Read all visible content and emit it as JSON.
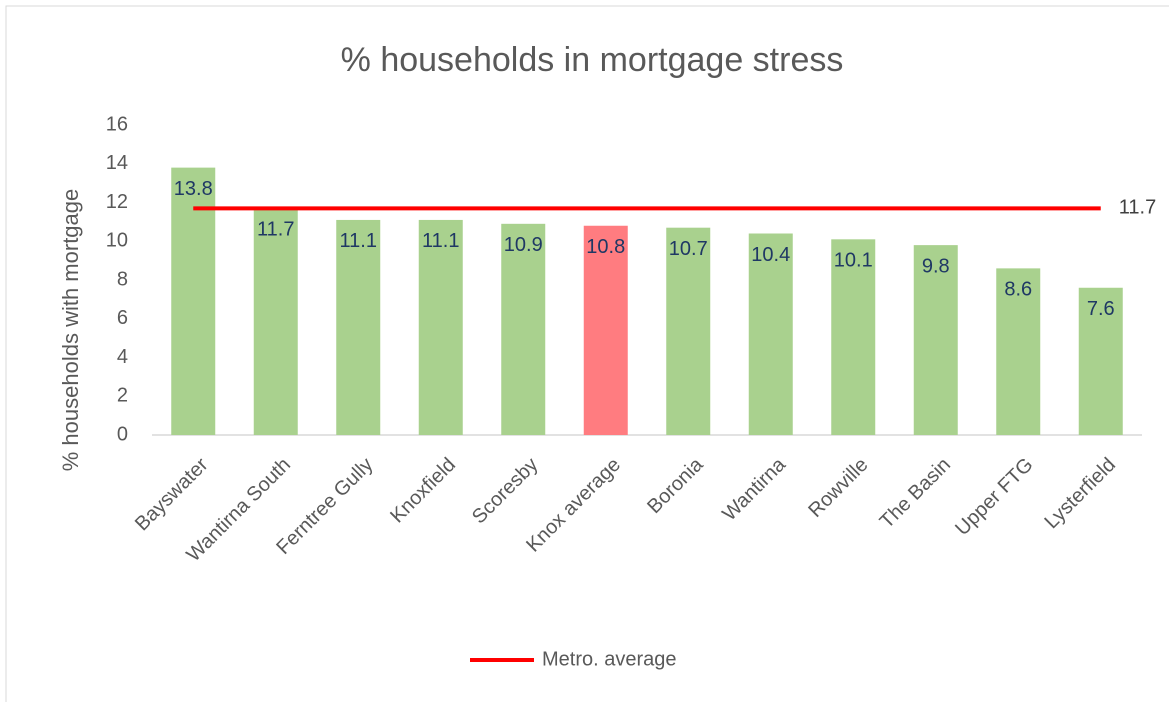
{
  "chart_data": {
    "type": "bar",
    "title": "% households in mortgage stress",
    "y_label": "% households with mortgage",
    "categories": [
      "Bayswater",
      "Wantirna South",
      "Ferntree Gully",
      "Knoxfield",
      "Scoresby",
      "Knox average",
      "Boronia",
      "Wantirna",
      "Rowville",
      "The Basin",
      "Upper FTG",
      "Lysterfield"
    ],
    "values": [
      13.8,
      11.7,
      11.1,
      11.1,
      10.9,
      10.8,
      10.7,
      10.4,
      10.1,
      9.8,
      8.6,
      7.6
    ],
    "colors": [
      "#a9d18e",
      "#a9d18e",
      "#a9d18e",
      "#a9d18e",
      "#a9d18e",
      "#ff7c80",
      "#a9d18e",
      "#a9d18e",
      "#a9d18e",
      "#a9d18e",
      "#a9d18e",
      "#a9d18e"
    ],
    "reference_line": {
      "name": "Metro. average",
      "value": 11.7,
      "color": "#ff0000"
    },
    "ylim": [
      0,
      16
    ],
    "yticks": [
      0,
      2,
      4,
      6,
      8,
      10,
      12,
      14,
      16
    ],
    "grid": false,
    "legend": "bottom"
  }
}
